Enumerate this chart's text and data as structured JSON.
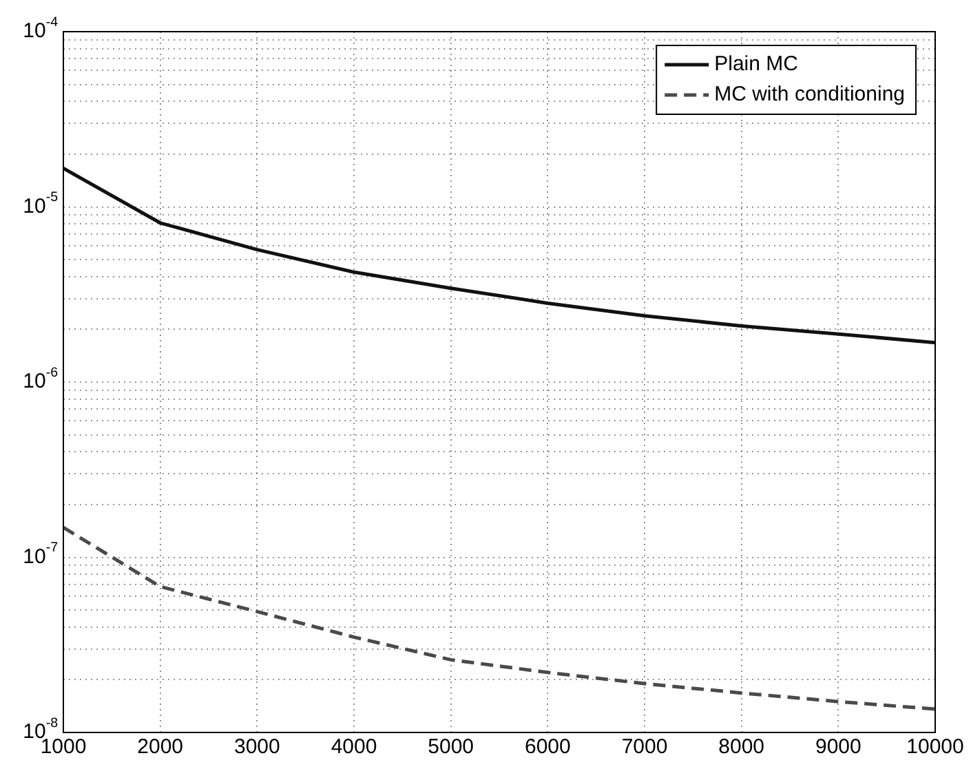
{
  "chart_data": {
    "type": "line",
    "log": "y",
    "grid": true,
    "legend": "top right",
    "xlim": [
      1000,
      10000
    ],
    "ylim": [
      1e-08,
      0.0001
    ],
    "xticks": [
      1000,
      2000,
      3000,
      4000,
      5000,
      6000,
      7000,
      8000,
      9000,
      10000
    ],
    "yticks": [
      {
        "value": 1e-08,
        "label": "10$^{-8}$"
      },
      {
        "value": 2e-08,
        "label": null
      },
      {
        "value": 3e-08,
        "label": null
      },
      {
        "value": 4e-08,
        "label": null
      },
      {
        "value": 5e-08,
        "label": null
      },
      {
        "value": 6e-08,
        "label": null
      },
      {
        "value": 7e-08,
        "label": null
      },
      {
        "value": 8e-08,
        "label": null
      },
      {
        "value": 9e-08,
        "label": null
      },
      {
        "value": 1e-07,
        "label": "10$^{-7}$"
      },
      {
        "value": 2e-07,
        "label": null
      },
      {
        "value": 3e-07,
        "label": null
      },
      {
        "value": 4e-07,
        "label": null
      },
      {
        "value": 5e-07,
        "label": null
      },
      {
        "value": 6e-07,
        "label": null
      },
      {
        "value": 7e-07,
        "label": null
      },
      {
        "value": 8e-07,
        "label": null
      },
      {
        "value": 9e-07,
        "label": null
      },
      {
        "value": 1e-06,
        "label": "10$^{-6}$"
      },
      {
        "value": 2e-06,
        "label": null
      },
      {
        "value": 3e-06,
        "label": null
      },
      {
        "value": 4e-06,
        "label": null
      },
      {
        "value": 5e-06,
        "label": null
      },
      {
        "value": 6e-06,
        "label": null
      },
      {
        "value": 7e-06,
        "label": null
      },
      {
        "value": 8e-06,
        "label": null
      },
      {
        "value": 9e-06,
        "label": null
      },
      {
        "value": 1e-05,
        "label": "10$^{-5}$"
      },
      {
        "value": 2e-05,
        "label": null
      },
      {
        "value": 3e-05,
        "label": null
      },
      {
        "value": 4e-05,
        "label": null
      },
      {
        "value": 5e-05,
        "label": null
      },
      {
        "value": 6e-05,
        "label": null
      },
      {
        "value": 7e-05,
        "label": null
      },
      {
        "value": 8e-05,
        "label": null
      },
      {
        "value": 9e-05,
        "label": null
      },
      {
        "value": 0.0001,
        "label": "10$^{-4}$"
      }
    ],
    "x": [
      1000,
      2000,
      3000,
      4000,
      5000,
      6000,
      7000,
      8000,
      9000,
      10000
    ],
    "series": [
      {
        "name": "Plain MC",
        "color": "#111111",
        "line_style": "solid",
        "values": [
          1.66e-05,
          8.1e-06,
          5.7e-06,
          4.24e-06,
          3.43e-06,
          2.82e-06,
          2.39e-06,
          2.09e-06,
          1.88e-06,
          1.68e-06
        ]
      },
      {
        "name": "MC with conditioning",
        "color": "#4a4a4a",
        "line_style": "dashed",
        "values": [
          1.48e-07,
          6.8e-08,
          4.9e-08,
          3.5e-08,
          2.6e-08,
          2.2e-08,
          1.9e-08,
          1.68e-08,
          1.5e-08,
          1.36e-08
        ]
      }
    ]
  }
}
